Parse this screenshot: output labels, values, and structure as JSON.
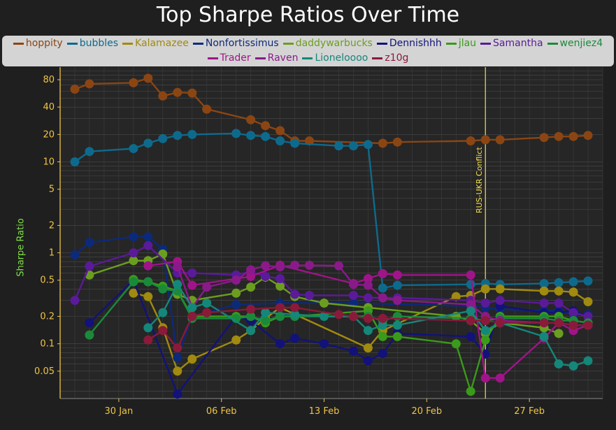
{
  "chart_data": {
    "type": "line",
    "title": "Top Sharpe Ratios Over Time",
    "ylabel": "Sharpe Ratio",
    "xlabel": "",
    "yscale": "log",
    "ylim": [
      0.025,
      110
    ],
    "xlim": [
      "2022-01-26",
      "2022-03-04"
    ],
    "grid": true,
    "legend_position": "top",
    "x_ticks": [
      {
        "date": "2022-01-30",
        "label": "30 Jan"
      },
      {
        "date": "2022-02-06",
        "label": "06 Feb"
      },
      {
        "date": "2022-02-13",
        "label": "13 Feb"
      },
      {
        "date": "2022-02-20",
        "label": "20 Feb"
      },
      {
        "date": "2022-02-27",
        "label": "27 Feb"
      }
    ],
    "y_ticks": [
      {
        "value": 0.05,
        "label": "0.05"
      },
      {
        "value": 0.1,
        "label": "0.1"
      },
      {
        "value": 0.2,
        "label": "0.2"
      },
      {
        "value": 0.5,
        "label": "0.5"
      },
      {
        "value": 1,
        "label": "1"
      },
      {
        "value": 2,
        "label": "2"
      },
      {
        "value": 5,
        "label": "5"
      },
      {
        "value": 10,
        "label": "10"
      },
      {
        "value": 20,
        "label": "20"
      },
      {
        "value": 40,
        "label": "40"
      },
      {
        "value": 80,
        "label": "80"
      }
    ],
    "annotations": [
      {
        "date": "2022-02-24",
        "text": "RUS-UKR Conflict",
        "color": "#f4e04d"
      }
    ],
    "series": [
      {
        "name": "hoppity",
        "color": "#8b4513",
        "x": [
          "2022-01-27",
          "2022-01-28",
          "2022-01-31",
          "2022-02-01",
          "2022-02-02",
          "2022-02-03",
          "2022-02-04",
          "2022-02-05",
          "2022-02-08",
          "2022-02-09",
          "2022-02-10",
          "2022-02-11",
          "2022-02-12",
          "2022-02-17",
          "2022-02-18",
          "2022-02-23",
          "2022-02-24",
          "2022-02-25",
          "2022-02-28",
          "2022-03-01",
          "2022-03-02",
          "2022-03-03"
        ],
        "values": [
          63,
          72,
          74,
          83,
          53,
          58,
          57,
          38,
          29,
          25,
          22,
          17,
          17,
          16,
          16.5,
          17,
          17.5,
          17.5,
          18.5,
          19,
          19,
          19.5
        ]
      },
      {
        "name": "bubbles",
        "color": "#0e6a8c",
        "x": [
          "2022-01-27",
          "2022-01-28",
          "2022-01-31",
          "2022-02-01",
          "2022-02-02",
          "2022-02-03",
          "2022-02-04",
          "2022-02-07",
          "2022-02-08",
          "2022-02-09",
          "2022-02-10",
          "2022-02-11",
          "2022-02-14",
          "2022-02-15",
          "2022-02-16",
          "2022-02-17",
          "2022-02-18",
          "2022-02-23",
          "2022-02-24",
          "2022-02-25",
          "2022-02-28",
          "2022-03-01",
          "2022-03-02",
          "2022-03-03"
        ],
        "values": [
          10,
          13,
          14,
          16,
          18,
          19.5,
          20,
          20.5,
          19.5,
          19,
          17,
          16,
          15,
          15,
          15.5,
          0.41,
          0.44,
          0.45,
          0.46,
          0.45,
          0.46,
          0.47,
          0.48,
          0.49
        ]
      },
      {
        "name": "Kalamazee",
        "color": "#a08a0f",
        "x": [
          "2022-01-31",
          "2022-02-01",
          "2022-02-02",
          "2022-02-03",
          "2022-02-04",
          "2022-02-07",
          "2022-02-08",
          "2022-02-09",
          "2022-02-10",
          "2022-02-16",
          "2022-02-17",
          "2022-02-22",
          "2022-02-23",
          "2022-02-24",
          "2022-02-25",
          "2022-02-28",
          "2022-03-01",
          "2022-03-02",
          "2022-03-03"
        ],
        "values": [
          0.36,
          0.33,
          0.15,
          0.05,
          0.068,
          0.11,
          0.14,
          0.19,
          0.25,
          0.09,
          0.14,
          0.33,
          0.34,
          0.4,
          0.4,
          0.38,
          0.38,
          0.37,
          0.29
        ]
      },
      {
        "name": "Nonfortissimus",
        "color": "#0c2a7a",
        "x": [
          "2022-01-27",
          "2022-01-28",
          "2022-01-31",
          "2022-02-01",
          "2022-02-02",
          "2022-02-03",
          "2022-02-04",
          "2022-02-07",
          "2022-02-10",
          "2022-02-15",
          "2022-02-23",
          "2022-02-24",
          "2022-02-25",
          "2022-02-28",
          "2022-03-01",
          "2022-03-02",
          "2022-03-03"
        ],
        "values": [
          0.95,
          1.3,
          1.5,
          1.5,
          1.1,
          0.07,
          0.2,
          0.27,
          0.28,
          0.28,
          0.26,
          0.25,
          0.24,
          0.23,
          0.23,
          0.21,
          0.21
        ]
      },
      {
        "name": "daddywarbucks",
        "color": "#6b9e1f",
        "x": [
          "2022-01-28",
          "2022-01-31",
          "2022-02-01",
          "2022-02-02",
          "2022-02-03",
          "2022-02-04",
          "2022-02-07",
          "2022-02-08",
          "2022-02-09",
          "2022-02-10",
          "2022-02-11",
          "2022-02-13",
          "2022-02-16",
          "2022-02-22",
          "2022-02-23",
          "2022-02-24",
          "2022-02-25",
          "2022-02-28",
          "2022-03-01"
        ],
        "values": [
          0.57,
          0.82,
          0.82,
          0.97,
          0.35,
          0.3,
          0.36,
          0.42,
          0.54,
          0.43,
          0.33,
          0.28,
          0.25,
          0.2,
          0.18,
          0.13,
          0.17,
          0.15,
          0.13
        ]
      },
      {
        "name": "Dennishhh",
        "color": "#12127a",
        "x": [
          "2022-01-28",
          "2022-01-31",
          "2022-02-03",
          "2022-02-07",
          "2022-02-08",
          "2022-02-10",
          "2022-02-11",
          "2022-02-13",
          "2022-02-15",
          "2022-02-16",
          "2022-02-17",
          "2022-02-18",
          "2022-02-23",
          "2022-02-24",
          "2022-02-25",
          "2022-02-28",
          "2022-03-01",
          "2022-03-02",
          "2022-03-03"
        ],
        "values": [
          0.17,
          0.5,
          0.028,
          0.2,
          0.18,
          0.1,
          0.115,
          0.1,
          0.083,
          0.065,
          0.078,
          0.13,
          0.12,
          0.077,
          0.26,
          0.22,
          0.22,
          0.23,
          0.2
        ]
      },
      {
        "name": "jlau",
        "color": "#3a9a1a",
        "x": [
          "2022-01-31",
          "2022-02-01",
          "2022-02-02",
          "2022-02-03",
          "2022-02-04",
          "2022-02-07",
          "2022-02-08",
          "2022-02-09",
          "2022-02-10",
          "2022-02-11",
          "2022-02-16",
          "2022-02-17",
          "2022-02-18",
          "2022-02-22",
          "2022-02-23",
          "2022-02-24",
          "2022-02-25",
          "2022-02-28",
          "2022-03-01",
          "2022-03-02",
          "2022-03-03"
        ],
        "values": [
          0.51,
          0.48,
          0.43,
          0.38,
          0.2,
          0.2,
          0.2,
          0.17,
          0.2,
          0.2,
          0.23,
          0.12,
          0.12,
          0.1,
          0.03,
          0.11,
          0.2,
          0.2,
          0.2,
          0.18,
          0.17
        ]
      },
      {
        "name": "Samantha",
        "color": "#5a1a9a",
        "x": [
          "2022-01-27",
          "2022-01-28",
          "2022-01-31",
          "2022-02-01",
          "2022-02-03",
          "2022-02-04",
          "2022-02-07",
          "2022-02-08",
          "2022-02-09",
          "2022-02-10",
          "2022-02-11",
          "2022-02-12",
          "2022-02-15",
          "2022-02-16",
          "2022-02-17",
          "2022-02-18",
          "2022-02-23",
          "2022-02-24",
          "2022-02-25",
          "2022-02-28",
          "2022-03-01",
          "2022-03-02",
          "2022-03-03"
        ],
        "values": [
          0.3,
          0.71,
          1.0,
          1.2,
          0.6,
          0.6,
          0.57,
          0.62,
          0.55,
          0.52,
          0.35,
          0.34,
          0.34,
          0.32,
          0.32,
          0.32,
          0.3,
          0.28,
          0.3,
          0.28,
          0.28,
          0.22,
          0.2
        ]
      },
      {
        "name": "wenjiez4",
        "color": "#1a8a3a",
        "x": [
          "2022-01-28",
          "2022-01-31",
          "2022-02-01",
          "2022-02-02",
          "2022-02-03",
          "2022-02-04",
          "2022-02-07",
          "2022-02-08",
          "2022-02-09",
          "2022-02-10",
          "2022-02-11",
          "2022-02-15",
          "2022-02-16",
          "2022-02-17",
          "2022-02-18",
          "2022-02-23",
          "2022-02-24",
          "2022-02-25",
          "2022-02-28",
          "2022-03-01",
          "2022-03-02",
          "2022-03-03"
        ],
        "values": [
          0.125,
          0.48,
          0.48,
          0.4,
          0.38,
          0.19,
          0.19,
          0.2,
          0.18,
          0.2,
          0.2,
          0.2,
          0.2,
          0.18,
          0.2,
          0.19,
          0.18,
          0.19,
          0.19,
          0.18,
          0.18,
          0.17
        ]
      },
      {
        "name": "Trader",
        "color": "#a0148a",
        "x": [
          "2022-02-01",
          "2022-02-03",
          "2022-02-04",
          "2022-02-08",
          "2022-02-10",
          "2022-02-15",
          "2022-02-16",
          "2022-02-17",
          "2022-02-18",
          "2022-02-23",
          "2022-02-24",
          "2022-02-25",
          "2022-02-28",
          "2022-03-01",
          "2022-03-02",
          "2022-03-03"
        ],
        "values": [
          0.72,
          0.8,
          0.44,
          0.55,
          0.73,
          0.46,
          0.52,
          0.59,
          0.57,
          0.57,
          0.042,
          0.042,
          0.115,
          0.17,
          0.14,
          0.16
        ]
      },
      {
        "name": "Raven",
        "color": "#8a1a8a",
        "x": [
          "2022-02-03",
          "2022-02-04",
          "2022-02-05",
          "2022-02-07",
          "2022-02-08",
          "2022-02-09",
          "2022-02-10",
          "2022-02-11",
          "2022-02-12",
          "2022-02-14",
          "2022-02-15",
          "2022-02-16",
          "2022-02-17",
          "2022-02-18",
          "2022-02-23",
          "2022-02-24",
          "2022-02-25",
          "2022-02-28",
          "2022-03-01",
          "2022-03-02",
          "2022-03-03"
        ],
        "values": [
          0.7,
          0.25,
          0.42,
          0.5,
          0.65,
          0.72,
          0.7,
          0.73,
          0.73,
          0.72,
          0.45,
          0.44,
          0.32,
          0.3,
          0.27,
          0.2,
          0.18,
          0.17,
          0.17,
          0.16,
          0.16
        ]
      },
      {
        "name": "Lioneloooo",
        "color": "#14877a",
        "x": [
          "2022-02-01",
          "2022-02-02",
          "2022-02-03",
          "2022-02-04",
          "2022-02-05",
          "2022-02-08",
          "2022-02-09",
          "2022-02-11",
          "2022-02-13",
          "2022-02-15",
          "2022-02-16",
          "2022-02-17",
          "2022-02-18",
          "2022-02-23",
          "2022-02-24",
          "2022-02-25",
          "2022-02-28",
          "2022-03-01",
          "2022-03-02",
          "2022-03-03"
        ],
        "values": [
          0.15,
          0.22,
          0.45,
          0.25,
          0.28,
          0.14,
          0.22,
          0.21,
          0.2,
          0.2,
          0.14,
          0.16,
          0.16,
          0.23,
          0.14,
          0.17,
          0.12,
          0.06,
          0.057,
          0.065
        ]
      },
      {
        "name": "z10g",
        "color": "#8a1a3a",
        "x": [
          "2022-02-01",
          "2022-02-02",
          "2022-02-03",
          "2022-02-04",
          "2022-02-05",
          "2022-02-08",
          "2022-02-10",
          "2022-02-11",
          "2022-02-14",
          "2022-02-15",
          "2022-02-16",
          "2022-02-17",
          "2022-02-23",
          "2022-02-24",
          "2022-02-25",
          "2022-02-28",
          "2022-03-01",
          "2022-03-02",
          "2022-03-03"
        ],
        "values": [
          0.11,
          0.14,
          0.09,
          0.2,
          0.22,
          0.24,
          0.25,
          0.25,
          0.21,
          0.2,
          0.19,
          0.19,
          0.18,
          0.18,
          0.17,
          0.17,
          0.17,
          0.16,
          0.16
        ]
      }
    ]
  }
}
